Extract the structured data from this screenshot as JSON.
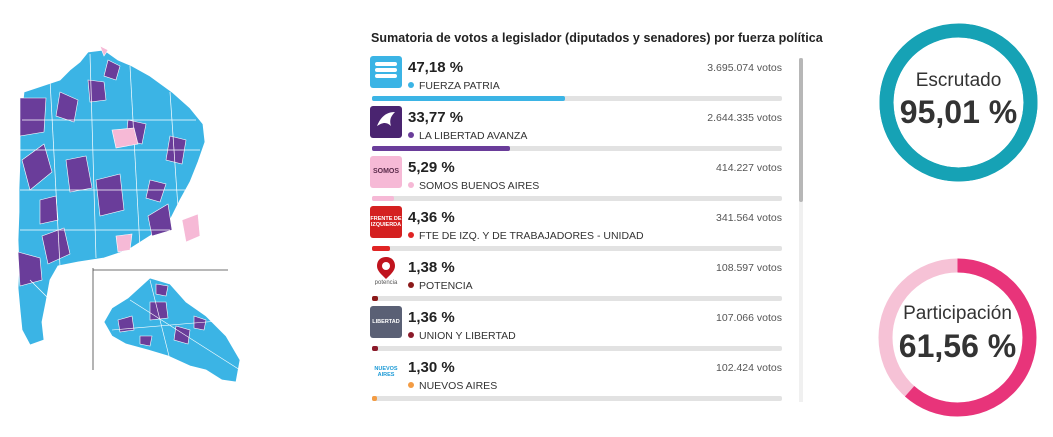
{
  "results": {
    "title": "Sumatoria de votos a legislador (diputados y senadores) por fuerza política",
    "parties": [
      {
        "percent_label": "47,18 %",
        "percent": 47.18,
        "votes": "3.695.074 votos",
        "name": "FUERZA PATRIA",
        "color": "#3bb4e5",
        "logo": "fuerza-patria-logo"
      },
      {
        "percent_label": "33,77 %",
        "percent": 33.77,
        "votes": "2.644.335 votos",
        "name": "LA LIBERTAD AVANZA",
        "color": "#6a3d9a",
        "logo": "la-libertad-avanza-logo"
      },
      {
        "percent_label": "5,29 %",
        "percent": 5.29,
        "votes": "414.227 votos",
        "name": "SOMOS BUENOS AIRES",
        "color": "#f6b9d6",
        "logo": "somos-logo",
        "logo_text": "SOMOS"
      },
      {
        "percent_label": "4,36 %",
        "percent": 4.36,
        "votes": "341.564 votos",
        "name": "FTE DE IZQ. Y DE TRABAJADORES - UNIDAD",
        "color": "#e02424",
        "logo": "frente-izquierda-logo",
        "logo_text": "FRENTE DE IZQUIERDA"
      },
      {
        "percent_label": "1,38 %",
        "percent": 1.38,
        "votes": "108.597 votos",
        "name": "POTENCIA",
        "color": "#8b1a1a",
        "logo": "potencia-logo",
        "logo_text": "potencia"
      },
      {
        "percent_label": "1,36 %",
        "percent": 1.36,
        "votes": "107.066 votos",
        "name": "UNION Y LIBERTAD",
        "color": "#8b1a2a",
        "logo": "union-y-libertad-logo",
        "logo_text": "LIBERTAD"
      },
      {
        "percent_label": "1,30 %",
        "percent": 1.3,
        "votes": "102.424 votos",
        "name": "NUEVOS AIRES",
        "color": "#f39c44",
        "logo": "nuevos-aires-logo",
        "logo_text": "NUEVOS AIRES"
      }
    ]
  },
  "escrutado": {
    "label": "Escrutado",
    "value_label": "95,01 %",
    "value": 95.01,
    "color": "#16a2b5",
    "track_color": "#16a2b5"
  },
  "participacion": {
    "label": "Participación",
    "value_label": "61,56 %",
    "value": 61.56,
    "color": "#e8347a",
    "track_color": "#f6c2d6"
  },
  "map": {
    "colors": {
      "fuerza_patria": "#3bb4e5",
      "libertad_avanza": "#6a3d9a",
      "somos": "#f6b9d6"
    }
  }
}
